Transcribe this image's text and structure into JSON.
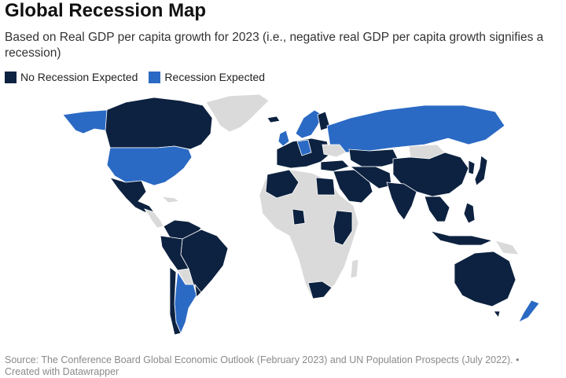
{
  "header": {
    "title": "Global Recession Map",
    "subtitle": "Based on Real GDP per capita growth for 2023 (i.e., negative real GDP per capita growth signifies a recession)"
  },
  "legend": {
    "items": [
      {
        "label": "No Recession Expected",
        "color": "#0d2240"
      },
      {
        "label": "Recession Expected",
        "color": "#2b6ac4"
      }
    ]
  },
  "colors": {
    "no_recession": "#0d2240",
    "recession": "#2b6ac4",
    "no_data": "#dadada",
    "border": "#ffffff"
  },
  "footer": {
    "source": "Source: The Conference Board Global Economic Outlook (February 2023) and UN Population Prospects (July 2022). •",
    "credit": "Created with Datawrapper"
  }
}
